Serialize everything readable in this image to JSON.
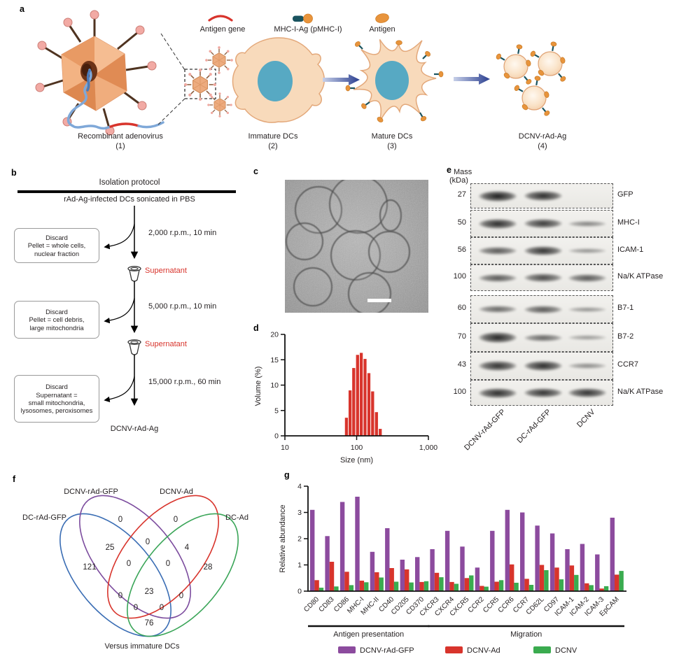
{
  "figure": {
    "panels": {
      "a": {
        "label": "a",
        "legend": [
          {
            "icon": "antigen-gene-icon",
            "label": "Antigen gene"
          },
          {
            "icon": "pmhc-icon",
            "label": "MHC-I-Ag (pMHC-I)"
          },
          {
            "icon": "antigen-icon",
            "label": "Antigen"
          }
        ],
        "stages": [
          {
            "title": "Recombinant adenovirus",
            "number": "(1)"
          },
          {
            "title": "Immature DCs",
            "number": "(2)"
          },
          {
            "title": "Mature DCs",
            "number": "(3)"
          },
          {
            "title": "DCNV-rAd-Ag",
            "number": "(4)"
          }
        ]
      },
      "b": {
        "label": "b",
        "title": "Isolation protocol",
        "source": "rAd-Ag-infected DCs sonicated in PBS",
        "steps": [
          {
            "condition": "2,000 r.p.m., 10 min",
            "discard": "Discard\nPellet = whole cells,\nnuclear fraction",
            "keep": "Supernatant"
          },
          {
            "condition": "5,000 r.p.m., 10 min",
            "discard": "Discard\nPellet = cell debris,\nlarge mitochondria",
            "keep": "Supernatant"
          },
          {
            "condition": "15,000 r.p.m., 60 min",
            "discard": "Discard\nSupernatant =\nsmall mitochondria,\nlysosomes, peroxisomes",
            "keep": ""
          }
        ],
        "product": "DCNV-rAd-Ag"
      },
      "c": {
        "label": "c"
      },
      "d": {
        "label": "d"
      },
      "e": {
        "label": "e",
        "mass_header_line1": "Mass",
        "mass_header_line2": "(kDa)",
        "lanes": [
          "DCNV-rAd-GFP",
          "DC-rAd-GFP",
          "DCNV"
        ],
        "blots": [
          {
            "mass": "27",
            "protein": "GFP",
            "intensities": [
              1.0,
              0.9,
              0
            ]
          },
          {
            "mass": "50",
            "protein": "MHC-I",
            "intensities": [
              0.9,
              0.8,
              0.3
            ]
          },
          {
            "mass": "56",
            "protein": "ICAM-1",
            "intensities": [
              0.6,
              0.85,
              0.2
            ]
          },
          {
            "mass": "100",
            "protein": "Na/K ATPase",
            "intensities": [
              0.6,
              0.7,
              0.6
            ]
          },
          {
            "mass": "60",
            "protein": "B7-1",
            "intensities": [
              0.5,
              0.6,
              0.2
            ]
          },
          {
            "mass": "70",
            "protein": "B7-2",
            "intensities": [
              0.95,
              0.5,
              0.15
            ]
          },
          {
            "mass": "43",
            "protein": "CCR7",
            "intensities": [
              0.85,
              0.9,
              0.25
            ]
          },
          {
            "mass": "100",
            "protein": "Na/K ATPase",
            "intensities": [
              0.9,
              0.85,
              0.85
            ]
          }
        ]
      },
      "f": {
        "label": "f",
        "caption": "Versus immature DCs",
        "sets": [
          {
            "name": "DC-rAd-GFP",
            "color": "#3a6db4"
          },
          {
            "name": "DCNV-rAd-GFP",
            "color": "#7c4c9e"
          },
          {
            "name": "DCNV-Ad",
            "color": "#d8342c"
          },
          {
            "name": "DC-Ad",
            "color": "#3aa558"
          }
        ],
        "regions": [
          {
            "sets": [
              "DCNV-rAd-GFP"
            ],
            "value": "0"
          },
          {
            "sets": [
              "DCNV-Ad"
            ],
            "value": "0"
          },
          {
            "sets": [
              "DC-rAd-GFP",
              "DCNV-rAd-GFP"
            ],
            "value": "25"
          },
          {
            "sets": [
              "DCNV-rAd-GFP",
              "DCNV-Ad"
            ],
            "value": "0"
          },
          {
            "sets": [
              "DCNV-Ad",
              "DC-Ad"
            ],
            "value": "4"
          },
          {
            "sets": [
              "DC-rAd-GFP"
            ],
            "value": "121"
          },
          {
            "sets": [
              "DC-rAd-GFP",
              "DCNV-rAd-GFP",
              "DCNV-Ad"
            ],
            "value": "0"
          },
          {
            "sets": [
              "DCNV-rAd-GFP",
              "DCNV-Ad",
              "DC-Ad"
            ],
            "value": "0"
          },
          {
            "sets": [
              "DC-Ad"
            ],
            "value": "28"
          },
          {
            "sets": [
              "DC-rAd-GFP",
              "DCNV-Ad"
            ],
            "value": "0"
          },
          {
            "sets": [
              "DC-rAd-GFP",
              "DCNV-rAd-GFP",
              "DCNV-Ad",
              "DC-Ad"
            ],
            "value": "23"
          },
          {
            "sets": [
              "DCNV-rAd-GFP",
              "DC-Ad"
            ],
            "value": "0"
          },
          {
            "sets": [
              "DC-rAd-GFP",
              "DCNV-Ad",
              "DC-Ad"
            ],
            "value": "0"
          },
          {
            "sets": [
              "DC-rAd-GFP",
              "DCNV-rAd-GFP",
              "DC-Ad"
            ],
            "value": "0"
          },
          {
            "sets": [
              "DC-rAd-GFP",
              "DC-Ad"
            ],
            "value": "76"
          }
        ]
      },
      "g": {
        "label": "g"
      }
    }
  },
  "chart_data": [
    {
      "id": "d",
      "type": "bar",
      "title": "",
      "xlabel": "Size (nm)",
      "ylabel": "Volume (%)",
      "xscale": "log",
      "xlim": [
        10,
        1000
      ],
      "ylim": [
        0,
        20
      ],
      "yticks": [
        0,
        5,
        10,
        15,
        20
      ],
      "xticks": [
        10,
        100,
        1000
      ],
      "xtick_labels": [
        "10",
        "100",
        "1,000"
      ],
      "x": [
        72,
        81,
        91,
        103,
        116,
        131,
        148,
        167,
        189,
        213
      ],
      "values": [
        3.6,
        9.0,
        13.4,
        16.0,
        16.4,
        15.2,
        12.4,
        8.8,
        4.7,
        1.4
      ],
      "bar_color": "#d8342c",
      "grid": false
    },
    {
      "id": "g",
      "type": "grouped-bar",
      "title": "",
      "xlabel": "",
      "ylabel": "Relative abundance",
      "ylim": [
        0,
        4
      ],
      "yticks": [
        0,
        1,
        2,
        3,
        4
      ],
      "grid": false,
      "legend_position": "bottom",
      "categories": [
        "CD80",
        "CD83",
        "CD86",
        "MHC-I",
        "MHC-II",
        "CD40",
        "CD205",
        "CD370",
        "CXCR3",
        "CXCR4",
        "CXCR5",
        "CCR2",
        "CCR5",
        "CCR6",
        "CCR7",
        "CD62L",
        "CD97",
        "ICAM-1",
        "ICAM-2",
        "ICAM-3",
        "EpCAM"
      ],
      "series": [
        {
          "name": "DCNV-rAd-GFP",
          "color": "#8c4b9e",
          "values": [
            3.1,
            2.1,
            3.4,
            3.6,
            1.5,
            2.4,
            1.2,
            1.3,
            1.6,
            2.3,
            1.7,
            0.9,
            2.3,
            3.1,
            3.0,
            2.5,
            2.2,
            1.6,
            1.8,
            1.4,
            2.8
          ]
        },
        {
          "name": "DCNV-Ad",
          "color": "#d8342c",
          "values": [
            0.42,
            1.12,
            0.74,
            0.4,
            0.72,
            0.88,
            0.83,
            0.35,
            0.7,
            0.35,
            0.5,
            0.2,
            0.36,
            1.02,
            0.47,
            1.0,
            0.9,
            0.98,
            0.3,
            0.1,
            0.63
          ]
        },
        {
          "name": "DCNV",
          "color": "#3aab4f",
          "values": [
            0.13,
            0.18,
            0.23,
            0.34,
            0.52,
            0.36,
            0.33,
            0.38,
            0.53,
            0.28,
            0.6,
            0.17,
            0.42,
            0.32,
            0.24,
            0.8,
            0.45,
            0.62,
            0.23,
            0.19,
            0.77
          ]
        }
      ],
      "group_labels": [
        {
          "label": "Antigen presentation",
          "span": [
            0,
            7
          ]
        },
        {
          "label": "Migration",
          "span": [
            8,
            20
          ]
        }
      ]
    }
  ]
}
